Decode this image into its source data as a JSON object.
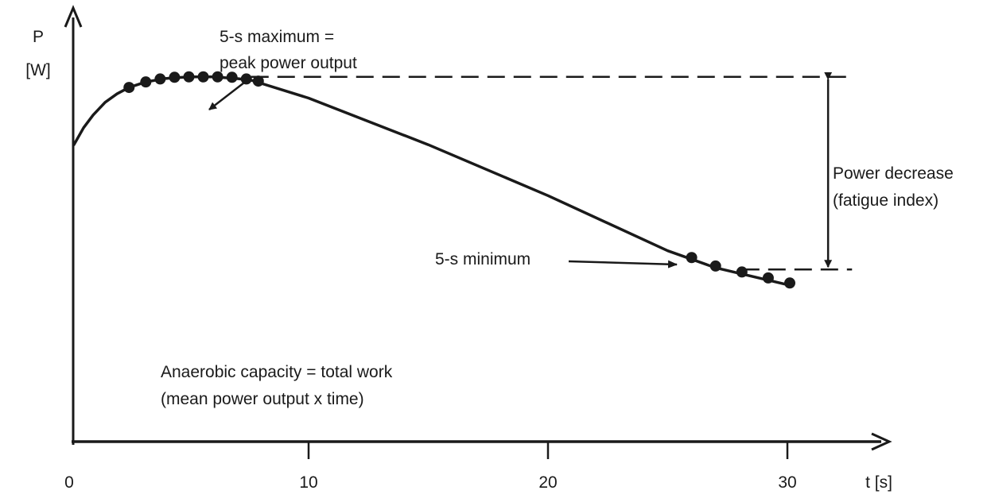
{
  "chart_data": {
    "type": "line",
    "title": "",
    "ylabel_line1": "P",
    "ylabel_line2": "[W]",
    "xlabel": "t [s]",
    "xlim": [
      0,
      30
    ],
    "ylim": [
      0,
      100
    ],
    "grid": false,
    "x_ticks": [
      {
        "value": 0,
        "label": "0"
      },
      {
        "value": 10,
        "label": "10"
      },
      {
        "value": 20,
        "label": "20"
      },
      {
        "value": 30,
        "label": "30"
      }
    ],
    "series": [
      {
        "curve": [
          [
            0.2,
            70
          ],
          [
            0.6,
            74
          ],
          [
            1.0,
            77
          ],
          [
            1.5,
            80
          ],
          [
            2.0,
            82
          ],
          [
            2.5,
            83.5
          ],
          [
            3.2,
            84.8
          ],
          [
            4.0,
            85.6
          ],
          [
            5.0,
            86.0
          ],
          [
            6.0,
            86.0
          ],
          [
            7.0,
            85.6
          ],
          [
            7.6,
            85.2
          ],
          [
            10,
            81
          ],
          [
            15,
            70
          ],
          [
            20,
            58
          ],
          [
            25,
            45
          ],
          [
            27,
            41
          ],
          [
            30,
            37
          ]
        ],
        "points": [
          [
            2.5,
            83.5
          ],
          [
            3.2,
            84.8
          ],
          [
            3.8,
            85.5
          ],
          [
            4.4,
            85.9
          ],
          [
            5.0,
            86.0
          ],
          [
            5.6,
            86.0
          ],
          [
            6.2,
            86.0
          ],
          [
            6.8,
            85.9
          ],
          [
            7.4,
            85.5
          ],
          [
            7.9,
            85.0
          ],
          [
            26.0,
            43.4
          ],
          [
            27.0,
            41.4
          ],
          [
            28.1,
            40.0
          ],
          [
            29.2,
            38.6
          ],
          [
            30.1,
            37.4
          ]
        ]
      }
    ],
    "reference_lines": {
      "peak_level": 86.0,
      "peak_dash_from_x": 7.6,
      "min_level": 40.6,
      "min_dash_from_x": 28.1,
      "dash_to_x": 32.7,
      "arrow_x": 31.7
    },
    "annotations": {
      "peak_line1": "5-s maximum =",
      "peak_line2": "peak power output",
      "minimum": "5-s minimum",
      "decrease_line1": "Power decrease",
      "decrease_line2": "(fatigue index)",
      "capacity_line1": "Anaerobic capacity = total work",
      "capacity_line2": "(mean power output x time)"
    }
  }
}
